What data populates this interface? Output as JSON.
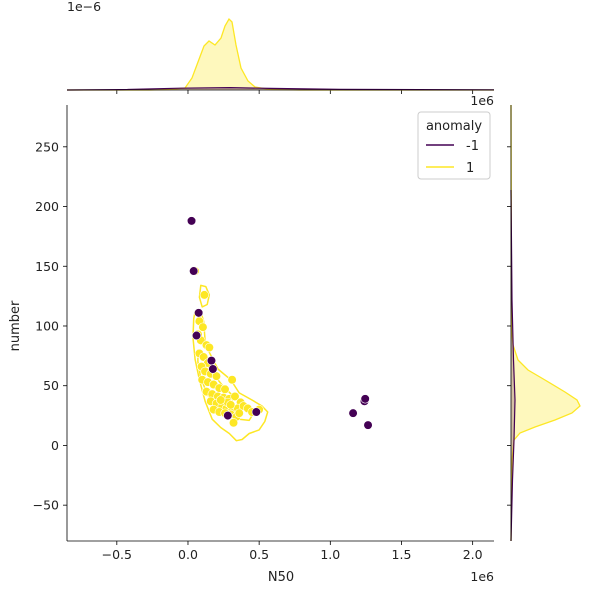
{
  "chart_data": {
    "type": "scatter",
    "xlabel": "N50",
    "ylabel": "number",
    "x_offset_label": "1e6",
    "top_marginal_offset_label": "1e−6",
    "right_marginal_offset_label": "1e6",
    "xlim": [
      -850000,
      2150000
    ],
    "ylim": [
      -80,
      285
    ],
    "x_ticks": [
      -500000,
      0,
      500000,
      1000000,
      1500000,
      2000000
    ],
    "x_tick_labels": [
      "−0.5",
      "0.0",
      "0.5",
      "1.0",
      "1.5",
      "2.0"
    ],
    "y_ticks": [
      -50,
      0,
      50,
      100,
      150,
      200,
      250
    ],
    "y_tick_labels": [
      "−50",
      "0",
      "50",
      "100",
      "150",
      "200",
      "250"
    ],
    "legend": {
      "title": "anomaly",
      "placement": "top-right",
      "entries": [
        {
          "label": "-1",
          "color": "#440154"
        },
        {
          "label": "1",
          "color": "#fde725"
        }
      ]
    },
    "series": [
      {
        "name": "-1",
        "color": "#440154",
        "points": [
          [
            25000,
            188
          ],
          [
            40000,
            146
          ],
          [
            75000,
            111
          ],
          [
            60000,
            92
          ],
          [
            165000,
            71
          ],
          [
            175000,
            64
          ],
          [
            280000,
            25
          ],
          [
            480000,
            28
          ],
          [
            1160000,
            27
          ],
          [
            1240000,
            37
          ],
          [
            1245000,
            39
          ],
          [
            1265000,
            17
          ]
        ]
      },
      {
        "name": "1",
        "color": "#fde725",
        "points": [
          [
            50000,
            146
          ],
          [
            115000,
            126
          ],
          [
            80000,
            104
          ],
          [
            105000,
            99
          ],
          [
            70000,
            93
          ],
          [
            90000,
            88
          ],
          [
            130000,
            84
          ],
          [
            150000,
            82
          ],
          [
            80000,
            77
          ],
          [
            110000,
            74
          ],
          [
            140000,
            69
          ],
          [
            95000,
            66
          ],
          [
            120000,
            62
          ],
          [
            160000,
            60
          ],
          [
            200000,
            58
          ],
          [
            100000,
            55
          ],
          [
            140000,
            53
          ],
          [
            180000,
            51
          ],
          [
            310000,
            55
          ],
          [
            220000,
            48
          ],
          [
            260000,
            47
          ],
          [
            130000,
            45
          ],
          [
            170000,
            43
          ],
          [
            210000,
            41
          ],
          [
            250000,
            40
          ],
          [
            290000,
            39
          ],
          [
            330000,
            41
          ],
          [
            370000,
            36
          ],
          [
            160000,
            37
          ],
          [
            200000,
            35
          ],
          [
            240000,
            33
          ],
          [
            270000,
            31
          ],
          [
            310000,
            29
          ],
          [
            350000,
            31
          ],
          [
            390000,
            33
          ],
          [
            420000,
            31
          ],
          [
            180000,
            30
          ],
          [
            220000,
            28
          ],
          [
            260000,
            27
          ],
          [
            300000,
            26
          ],
          [
            340000,
            24
          ],
          [
            320000,
            19
          ],
          [
            360000,
            27
          ],
          [
            450000,
            28
          ],
          [
            500000,
            30
          ],
          [
            280000,
            36
          ],
          [
            230000,
            38
          ],
          [
            300000,
            34
          ]
        ]
      }
    ],
    "top_marginal": {
      "peak_y_tops": [
        0.3,
        0.27,
        0.05
      ]
    },
    "right_marginal": {
      "peak_value_y": 37
    }
  }
}
